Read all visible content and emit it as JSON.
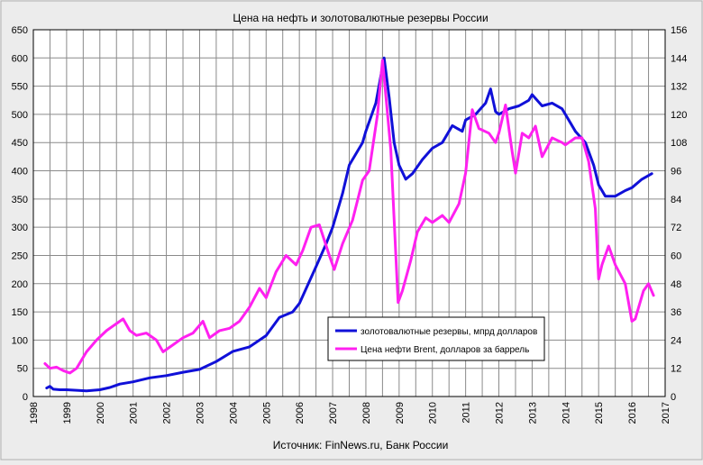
{
  "chart_data": {
    "type": "line",
    "title": "Цена на нефть и золотовалютные резервы России",
    "source": "Источник: FinNews.ru, Банк России",
    "xlim": [
      1998,
      2017
    ],
    "x_ticks": [
      1998,
      1999,
      2000,
      2001,
      2002,
      2003,
      2004,
      2005,
      2006,
      2007,
      2008,
      2009,
      2010,
      2011,
      2012,
      2013,
      2014,
      2015,
      2016,
      2017
    ],
    "y_left": {
      "lim": [
        0,
        650
      ],
      "ticks": [
        0,
        50,
        100,
        150,
        200,
        250,
        300,
        350,
        400,
        450,
        500,
        550,
        600,
        650
      ]
    },
    "y_right": {
      "lim": [
        0,
        156
      ],
      "ticks": [
        0,
        12,
        24,
        36,
        48,
        60,
        72,
        84,
        96,
        108,
        120,
        132,
        144,
        156
      ]
    },
    "grid": true,
    "legend_position": "lower-center",
    "series": [
      {
        "name": "золотовалютные резервы, мпрд долларов",
        "axis": "left",
        "color": "#1010d8",
        "points": [
          [
            1998.4,
            15
          ],
          [
            1998.5,
            18
          ],
          [
            1998.6,
            13
          ],
          [
            1998.8,
            12
          ],
          [
            1999.0,
            12
          ],
          [
            1999.3,
            11
          ],
          [
            1999.6,
            10
          ],
          [
            2000.0,
            12
          ],
          [
            2000.3,
            16
          ],
          [
            2000.6,
            22
          ],
          [
            2001.0,
            26
          ],
          [
            2001.5,
            33
          ],
          [
            2002.0,
            37
          ],
          [
            2002.5,
            43
          ],
          [
            2003.0,
            48
          ],
          [
            2003.5,
            62
          ],
          [
            2004.0,
            80
          ],
          [
            2004.5,
            88
          ],
          [
            2005.0,
            108
          ],
          [
            2005.4,
            140
          ],
          [
            2005.8,
            150
          ],
          [
            2006.0,
            165
          ],
          [
            2006.5,
            230
          ],
          [
            2006.8,
            270
          ],
          [
            2007.0,
            300
          ],
          [
            2007.3,
            360
          ],
          [
            2007.5,
            410
          ],
          [
            2007.9,
            450
          ],
          [
            2008.0,
            470
          ],
          [
            2008.3,
            520
          ],
          [
            2008.55,
            600
          ],
          [
            2008.7,
            530
          ],
          [
            2008.85,
            450
          ],
          [
            2009.0,
            410
          ],
          [
            2009.2,
            385
          ],
          [
            2009.4,
            395
          ],
          [
            2009.7,
            420
          ],
          [
            2010.0,
            440
          ],
          [
            2010.3,
            450
          ],
          [
            2010.6,
            480
          ],
          [
            2010.9,
            470
          ],
          [
            2011.0,
            490
          ],
          [
            2011.3,
            500
          ],
          [
            2011.6,
            520
          ],
          [
            2011.75,
            545
          ],
          [
            2011.9,
            505
          ],
          [
            2012.0,
            500
          ],
          [
            2012.3,
            510
          ],
          [
            2012.6,
            515
          ],
          [
            2012.9,
            525
          ],
          [
            2013.0,
            535
          ],
          [
            2013.3,
            515
          ],
          [
            2013.6,
            520
          ],
          [
            2013.9,
            510
          ],
          [
            2014.0,
            500
          ],
          [
            2014.3,
            470
          ],
          [
            2014.6,
            450
          ],
          [
            2014.85,
            410
          ],
          [
            2015.0,
            375
          ],
          [
            2015.2,
            355
          ],
          [
            2015.5,
            355
          ],
          [
            2015.8,
            365
          ],
          [
            2016.0,
            370
          ],
          [
            2016.3,
            385
          ],
          [
            2016.6,
            395
          ]
        ]
      },
      {
        "name": "Цена нефти Brent, долларов за баррель",
        "axis": "right",
        "color": "#ff20f0",
        "points": [
          [
            1998.35,
            14
          ],
          [
            1998.5,
            12
          ],
          [
            1998.7,
            12.5
          ],
          [
            1998.9,
            11
          ],
          [
            1999.1,
            10
          ],
          [
            1999.3,
            12
          ],
          [
            1999.6,
            19
          ],
          [
            1999.9,
            24
          ],
          [
            2000.2,
            28
          ],
          [
            2000.5,
            31
          ],
          [
            2000.7,
            33
          ],
          [
            2000.9,
            28
          ],
          [
            2001.1,
            26
          ],
          [
            2001.4,
            27
          ],
          [
            2001.7,
            24
          ],
          [
            2001.9,
            19
          ],
          [
            2002.2,
            22
          ],
          [
            2002.5,
            25
          ],
          [
            2002.8,
            27
          ],
          [
            2003.1,
            32
          ],
          [
            2003.3,
            25
          ],
          [
            2003.6,
            28
          ],
          [
            2003.9,
            29
          ],
          [
            2004.2,
            32
          ],
          [
            2004.5,
            38
          ],
          [
            2004.8,
            46
          ],
          [
            2005.0,
            42
          ],
          [
            2005.3,
            53
          ],
          [
            2005.6,
            60
          ],
          [
            2005.9,
            56
          ],
          [
            2006.1,
            62
          ],
          [
            2006.35,
            72
          ],
          [
            2006.6,
            73
          ],
          [
            2006.9,
            60
          ],
          [
            2007.05,
            54
          ],
          [
            2007.3,
            65
          ],
          [
            2007.6,
            75
          ],
          [
            2007.9,
            92
          ],
          [
            2008.1,
            96
          ],
          [
            2008.35,
            120
          ],
          [
            2008.5,
            143
          ],
          [
            2008.6,
            128
          ],
          [
            2008.75,
            105
          ],
          [
            2008.9,
            60
          ],
          [
            2008.97,
            40
          ],
          [
            2009.1,
            45
          ],
          [
            2009.35,
            58
          ],
          [
            2009.55,
            70
          ],
          [
            2009.8,
            76
          ],
          [
            2010.0,
            74
          ],
          [
            2010.3,
            77
          ],
          [
            2010.5,
            74
          ],
          [
            2010.8,
            82
          ],
          [
            2011.0,
            95
          ],
          [
            2011.2,
            122
          ],
          [
            2011.4,
            114
          ],
          [
            2011.7,
            112
          ],
          [
            2011.9,
            108
          ],
          [
            2012.0,
            112
          ],
          [
            2012.2,
            124
          ],
          [
            2012.4,
            104
          ],
          [
            2012.5,
            95
          ],
          [
            2012.7,
            112
          ],
          [
            2012.9,
            110
          ],
          [
            2013.1,
            115
          ],
          [
            2013.3,
            102
          ],
          [
            2013.6,
            110
          ],
          [
            2013.9,
            108
          ],
          [
            2014.0,
            107
          ],
          [
            2014.3,
            110
          ],
          [
            2014.5,
            110
          ],
          [
            2014.7,
            100
          ],
          [
            2014.9,
            80
          ],
          [
            2015.0,
            50
          ],
          [
            2015.1,
            56
          ],
          [
            2015.3,
            64
          ],
          [
            2015.5,
            56
          ],
          [
            2015.8,
            48
          ],
          [
            2016.0,
            32
          ],
          [
            2016.1,
            33
          ],
          [
            2016.35,
            45
          ],
          [
            2016.5,
            48
          ],
          [
            2016.65,
            43
          ]
        ]
      }
    ]
  }
}
